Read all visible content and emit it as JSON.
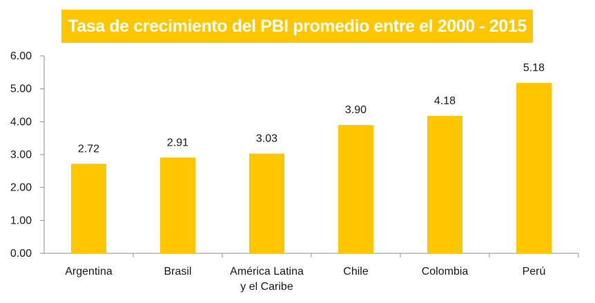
{
  "chart_data": {
    "type": "bar",
    "title": "Tasa de crecimiento del PBI promedio entre el 2000 - 2015",
    "categories": [
      [
        "Argentina"
      ],
      [
        "Brasil"
      ],
      [
        "América Latina",
        "y el Caribe"
      ],
      [
        "Chile"
      ],
      [
        "Colombia"
      ],
      [
        "Perú"
      ]
    ],
    "values": [
      2.72,
      2.91,
      3.03,
      3.9,
      4.18,
      5.18
    ],
    "data_labels": [
      "2.72",
      "2.91",
      "3.03",
      "3.90",
      "4.18",
      "5.18"
    ],
    "yticks": [
      "0.00",
      "1.00",
      "2.00",
      "3.00",
      "4.00",
      "5.00",
      "6.00"
    ],
    "ylim": [
      0,
      6
    ],
    "xlabel": "",
    "ylabel": "",
    "grid": false,
    "legend": "none",
    "colors": {
      "bar": "#ffc600",
      "title_background": "#ffc600",
      "title_text": "#ffffff",
      "axis": "#8c8c8c"
    }
  }
}
